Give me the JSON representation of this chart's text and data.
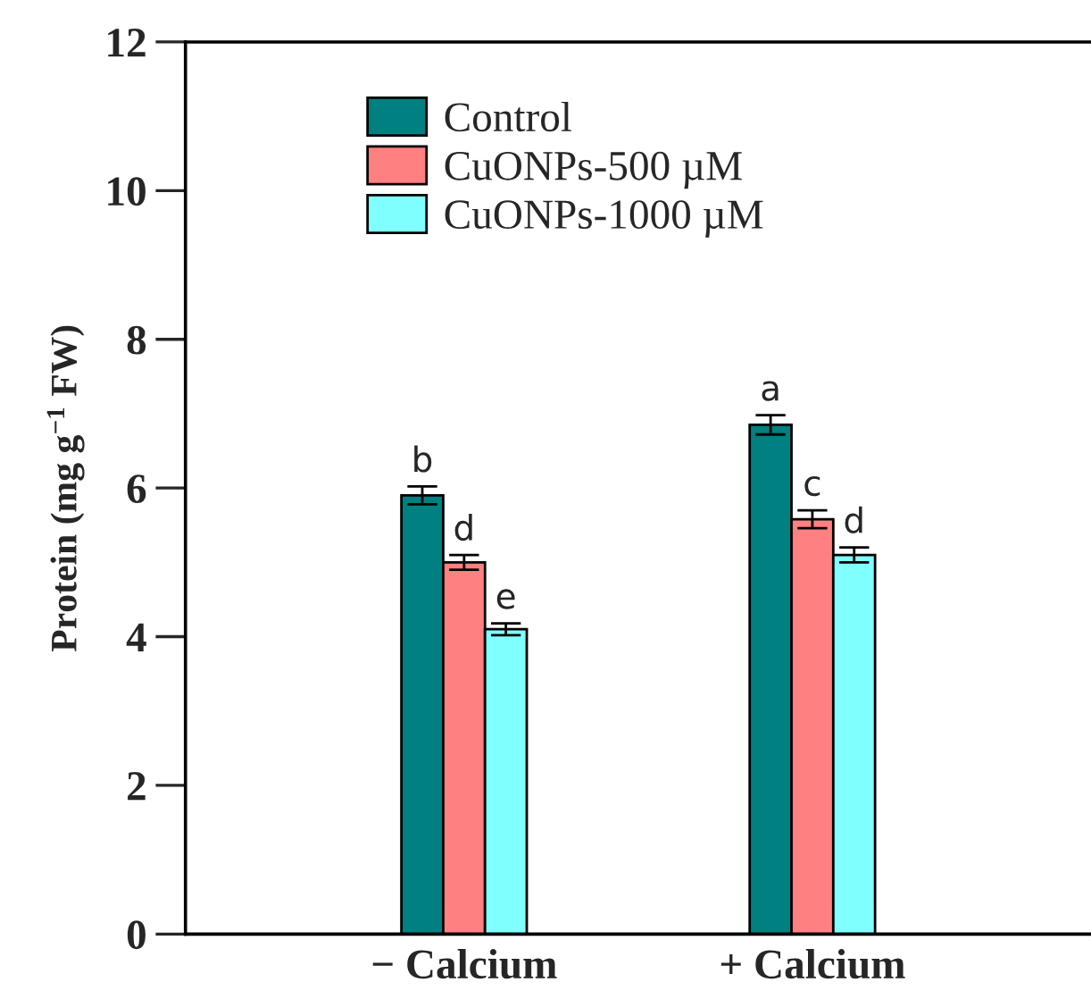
{
  "chart_data": {
    "type": "bar",
    "ylabel": "Protein (mg g$^{−1}$ FW)",
    "categories": [
      "− Calcium",
      "+ Calcium"
    ],
    "series": [
      {
        "name": "Control",
        "color": "#008080",
        "values": [
          5.9,
          6.85
        ],
        "errors": [
          0.12,
          0.13
        ]
      },
      {
        "name": "CuONPs-500 µM",
        "color": "#ff8080",
        "values": [
          5.0,
          5.58
        ],
        "errors": [
          0.1,
          0.12
        ]
      },
      {
        "name": "CuONPs-1000 µM",
        "color": "#80ffff",
        "values": [
          4.1,
          5.1
        ],
        "errors": [
          0.08,
          0.1
        ]
      }
    ],
    "annotations": [
      "b",
      "d",
      "e",
      "a",
      "c",
      "d"
    ],
    "ylim": [
      0,
      12
    ],
    "yticks": [
      0,
      2,
      4,
      6,
      8,
      10,
      12
    ],
    "grid": false,
    "legend": "top"
  }
}
